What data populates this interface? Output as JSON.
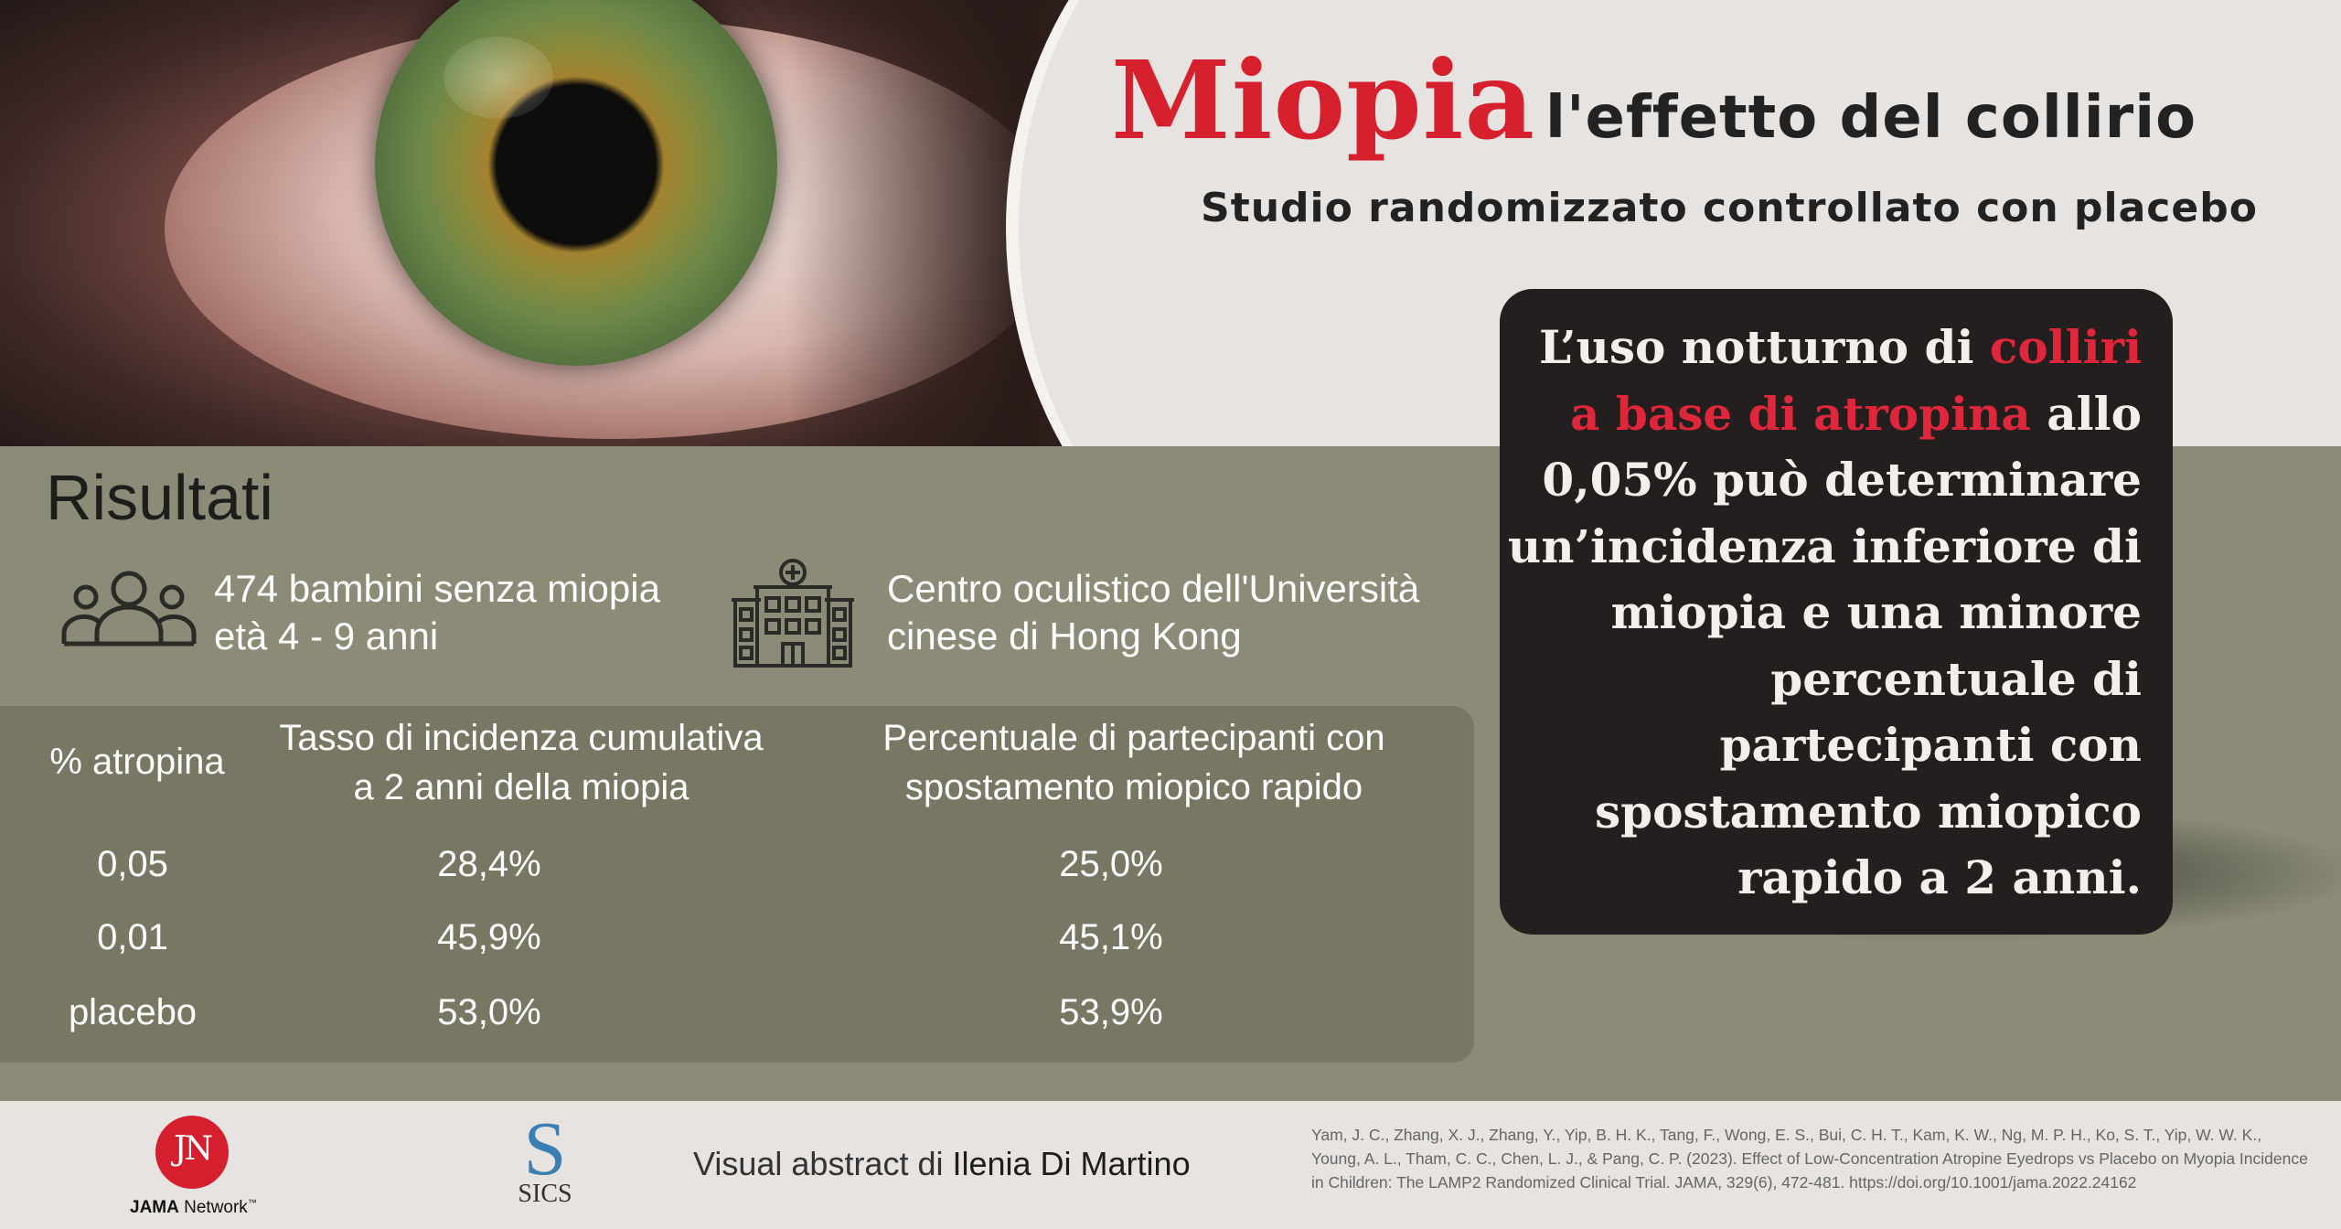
{
  "header": {
    "title_main": "Miopia",
    "title_rest": "l'effetto del collirio",
    "subtitle": "Studio randomizzato controllato con placebo"
  },
  "quote": {
    "part1": "L’uso notturno di ",
    "highlight": "colliri a base di atropina",
    "part2": " allo 0,05% può determinare un’incidenza  inferiore di miopia e una minore percentuale di partecipanti con spostamento miopico rapido a 2 anni."
  },
  "results": {
    "heading": "Risultati",
    "stat_children_line1": "474 bambini senza miopia",
    "stat_children_line2": "età 4 - 9 anni",
    "stat_center_line1": "Centro oculistico dell'Università",
    "stat_center_line2": "cinese di Hong Kong",
    "table": {
      "headers": [
        "% atropina",
        "Tasso di incidenza cumulativa a 2 anni della miopia",
        "Percentuale di partecipanti con spostamento miopico rapido"
      ],
      "header_lines": {
        "col2_line1": "Tasso di incidenza cumulativa",
        "col2_line2": "a 2 anni della miopia",
        "col3_line1": "Percentuale di partecipanti con",
        "col3_line2": "spostamento miopico rapido"
      },
      "rows": [
        [
          "0,05",
          "28,4%",
          "25,0%"
        ],
        [
          "0,01",
          "45,9%",
          "45,1%"
        ],
        [
          "placebo",
          "53,0%",
          "53,9%"
        ]
      ]
    }
  },
  "footer": {
    "jama_initials": "JN",
    "jama_label_bold": "JAMA",
    "jama_label_rest": " Network",
    "jama_tm": "™",
    "sics_letter": "S",
    "sics_text": "SICS",
    "credit_prefix": "Visual abstract di ",
    "credit_author": "Ilenia Di Martino",
    "reference": "Yam, J. C., Zhang, X. J., Zhang, Y., Yip, B. H. K., Tang, F., Wong, E. S., Bui, C. H. T., Kam, K. W., Ng, M. P. H., Ko, S. T., Yip, W. W. K., Young, A. L., Tham, C. C., Chen, L. J., & Pang, C. P. (2023). Effect of Low-Concentration Atropine Eyedrops vs Placebo on Myopia Incidence in Children: The LAMP2 Randomized Clinical Trial. JAMA, 329(6), 472-481. https://doi.org/10.1001/jama.2022.24162"
  },
  "icons": {
    "people": "people-group-icon",
    "hospital": "hospital-icon"
  },
  "colors": {
    "accent_red": "#d6202e",
    "olive": "#8b8b77",
    "panel": "#777764",
    "quote_bg": "#231f1f"
  }
}
